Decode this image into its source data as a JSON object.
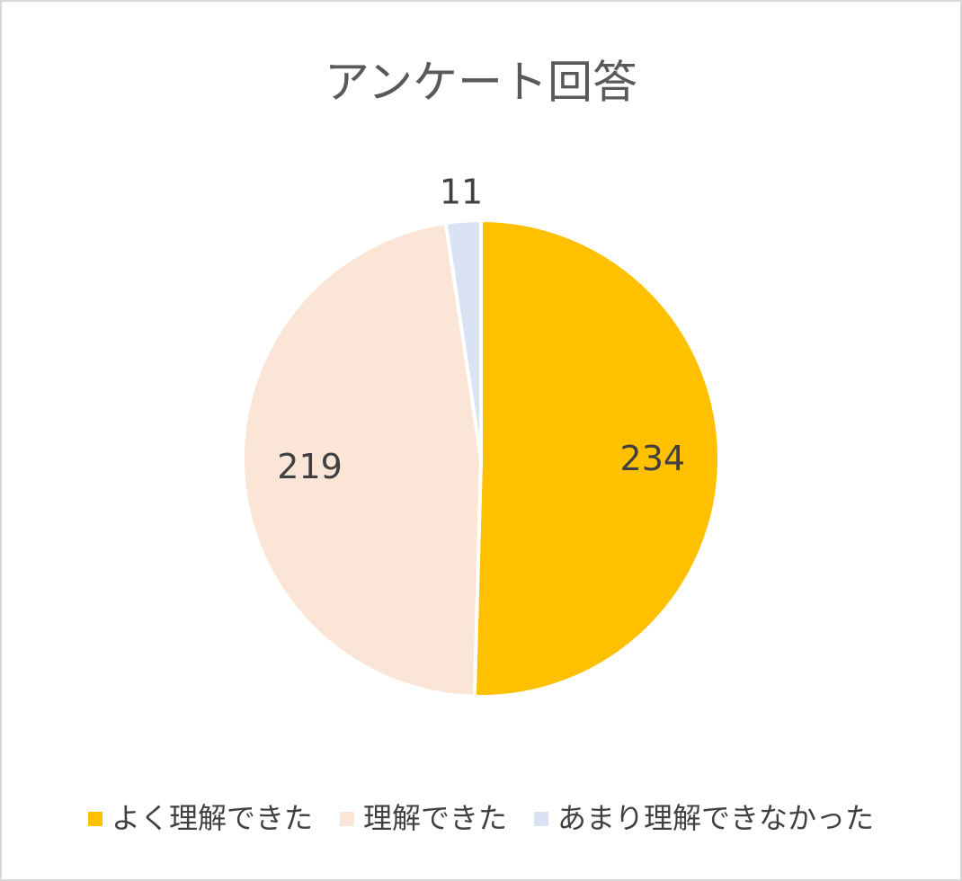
{
  "chart_data": {
    "type": "pie",
    "title": "アンケート回答",
    "categories": [
      "よく理解できた",
      "理解できた",
      "あまり理解できなかった"
    ],
    "values": [
      234,
      219,
      11
    ],
    "colors": [
      "#FFC000",
      "#FBE5D6",
      "#DAE3F3"
    ],
    "legend": "bottom"
  }
}
